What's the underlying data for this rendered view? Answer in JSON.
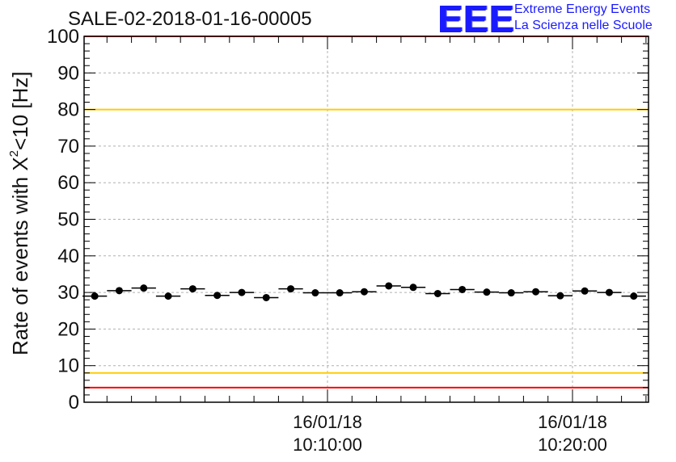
{
  "header": {
    "title": "SALE-02-2018-01-16-00005"
  },
  "logo": {
    "mark": "EEE",
    "line1": "Extreme Energy Events",
    "line2": "La Scienza nelle Scuole"
  },
  "axis": {
    "ylabel_pre": "Rate of events with X",
    "ylabel_sup": "2",
    "ylabel_post": "<10 [Hz]"
  },
  "chart_data": {
    "type": "scatter",
    "xlabel": "",
    "ylabel": "Rate of events with X^2<10 [Hz]",
    "ylim": [
      0,
      100
    ],
    "yticks": [
      0,
      10,
      20,
      30,
      40,
      50,
      60,
      70,
      80,
      90,
      100
    ],
    "x_tick_labels": [
      {
        "date": "16/01/18",
        "time": "10:10:00"
      },
      {
        "date": "16/01/18",
        "time": "10:20:00"
      }
    ],
    "grid": true,
    "reference_lines": [
      {
        "y": 100,
        "color": "#ff0000"
      },
      {
        "y": 80,
        "color": "#ffcc00"
      },
      {
        "y": 8,
        "color": "#ffcc00"
      },
      {
        "y": 4,
        "color": "#ff0000"
      }
    ],
    "series": [
      {
        "marker_color": "#000000",
        "points": [
          {
            "x": "10:00:30",
            "y": 29.0
          },
          {
            "x": "10:01:30",
            "y": 30.5
          },
          {
            "x": "10:02:30",
            "y": 31.2
          },
          {
            "x": "10:03:30",
            "y": 29.0
          },
          {
            "x": "10:04:30",
            "y": 31.0
          },
          {
            "x": "10:05:30",
            "y": 29.2
          },
          {
            "x": "10:06:30",
            "y": 30.0
          },
          {
            "x": "10:07:30",
            "y": 28.6
          },
          {
            "x": "10:08:30",
            "y": 31.0
          },
          {
            "x": "10:09:30",
            "y": 29.9
          },
          {
            "x": "10:10:30",
            "y": 29.9
          },
          {
            "x": "10:11:30",
            "y": 30.2
          },
          {
            "x": "10:12:30",
            "y": 31.8
          },
          {
            "x": "10:13:30",
            "y": 31.4
          },
          {
            "x": "10:14:30",
            "y": 29.7
          },
          {
            "x": "10:15:30",
            "y": 30.8
          },
          {
            "x": "10:16:30",
            "y": 30.1
          },
          {
            "x": "10:17:30",
            "y": 29.9
          },
          {
            "x": "10:18:30",
            "y": 30.2
          },
          {
            "x": "10:19:30",
            "y": 29.1
          },
          {
            "x": "10:20:30",
            "y": 30.4
          },
          {
            "x": "10:21:30",
            "y": 30.0
          },
          {
            "x": "10:22:30",
            "y": 29.0
          }
        ]
      }
    ]
  },
  "colors": {
    "axis": "#000000",
    "grid": "#b0b0b0",
    "marker": "#000000"
  }
}
